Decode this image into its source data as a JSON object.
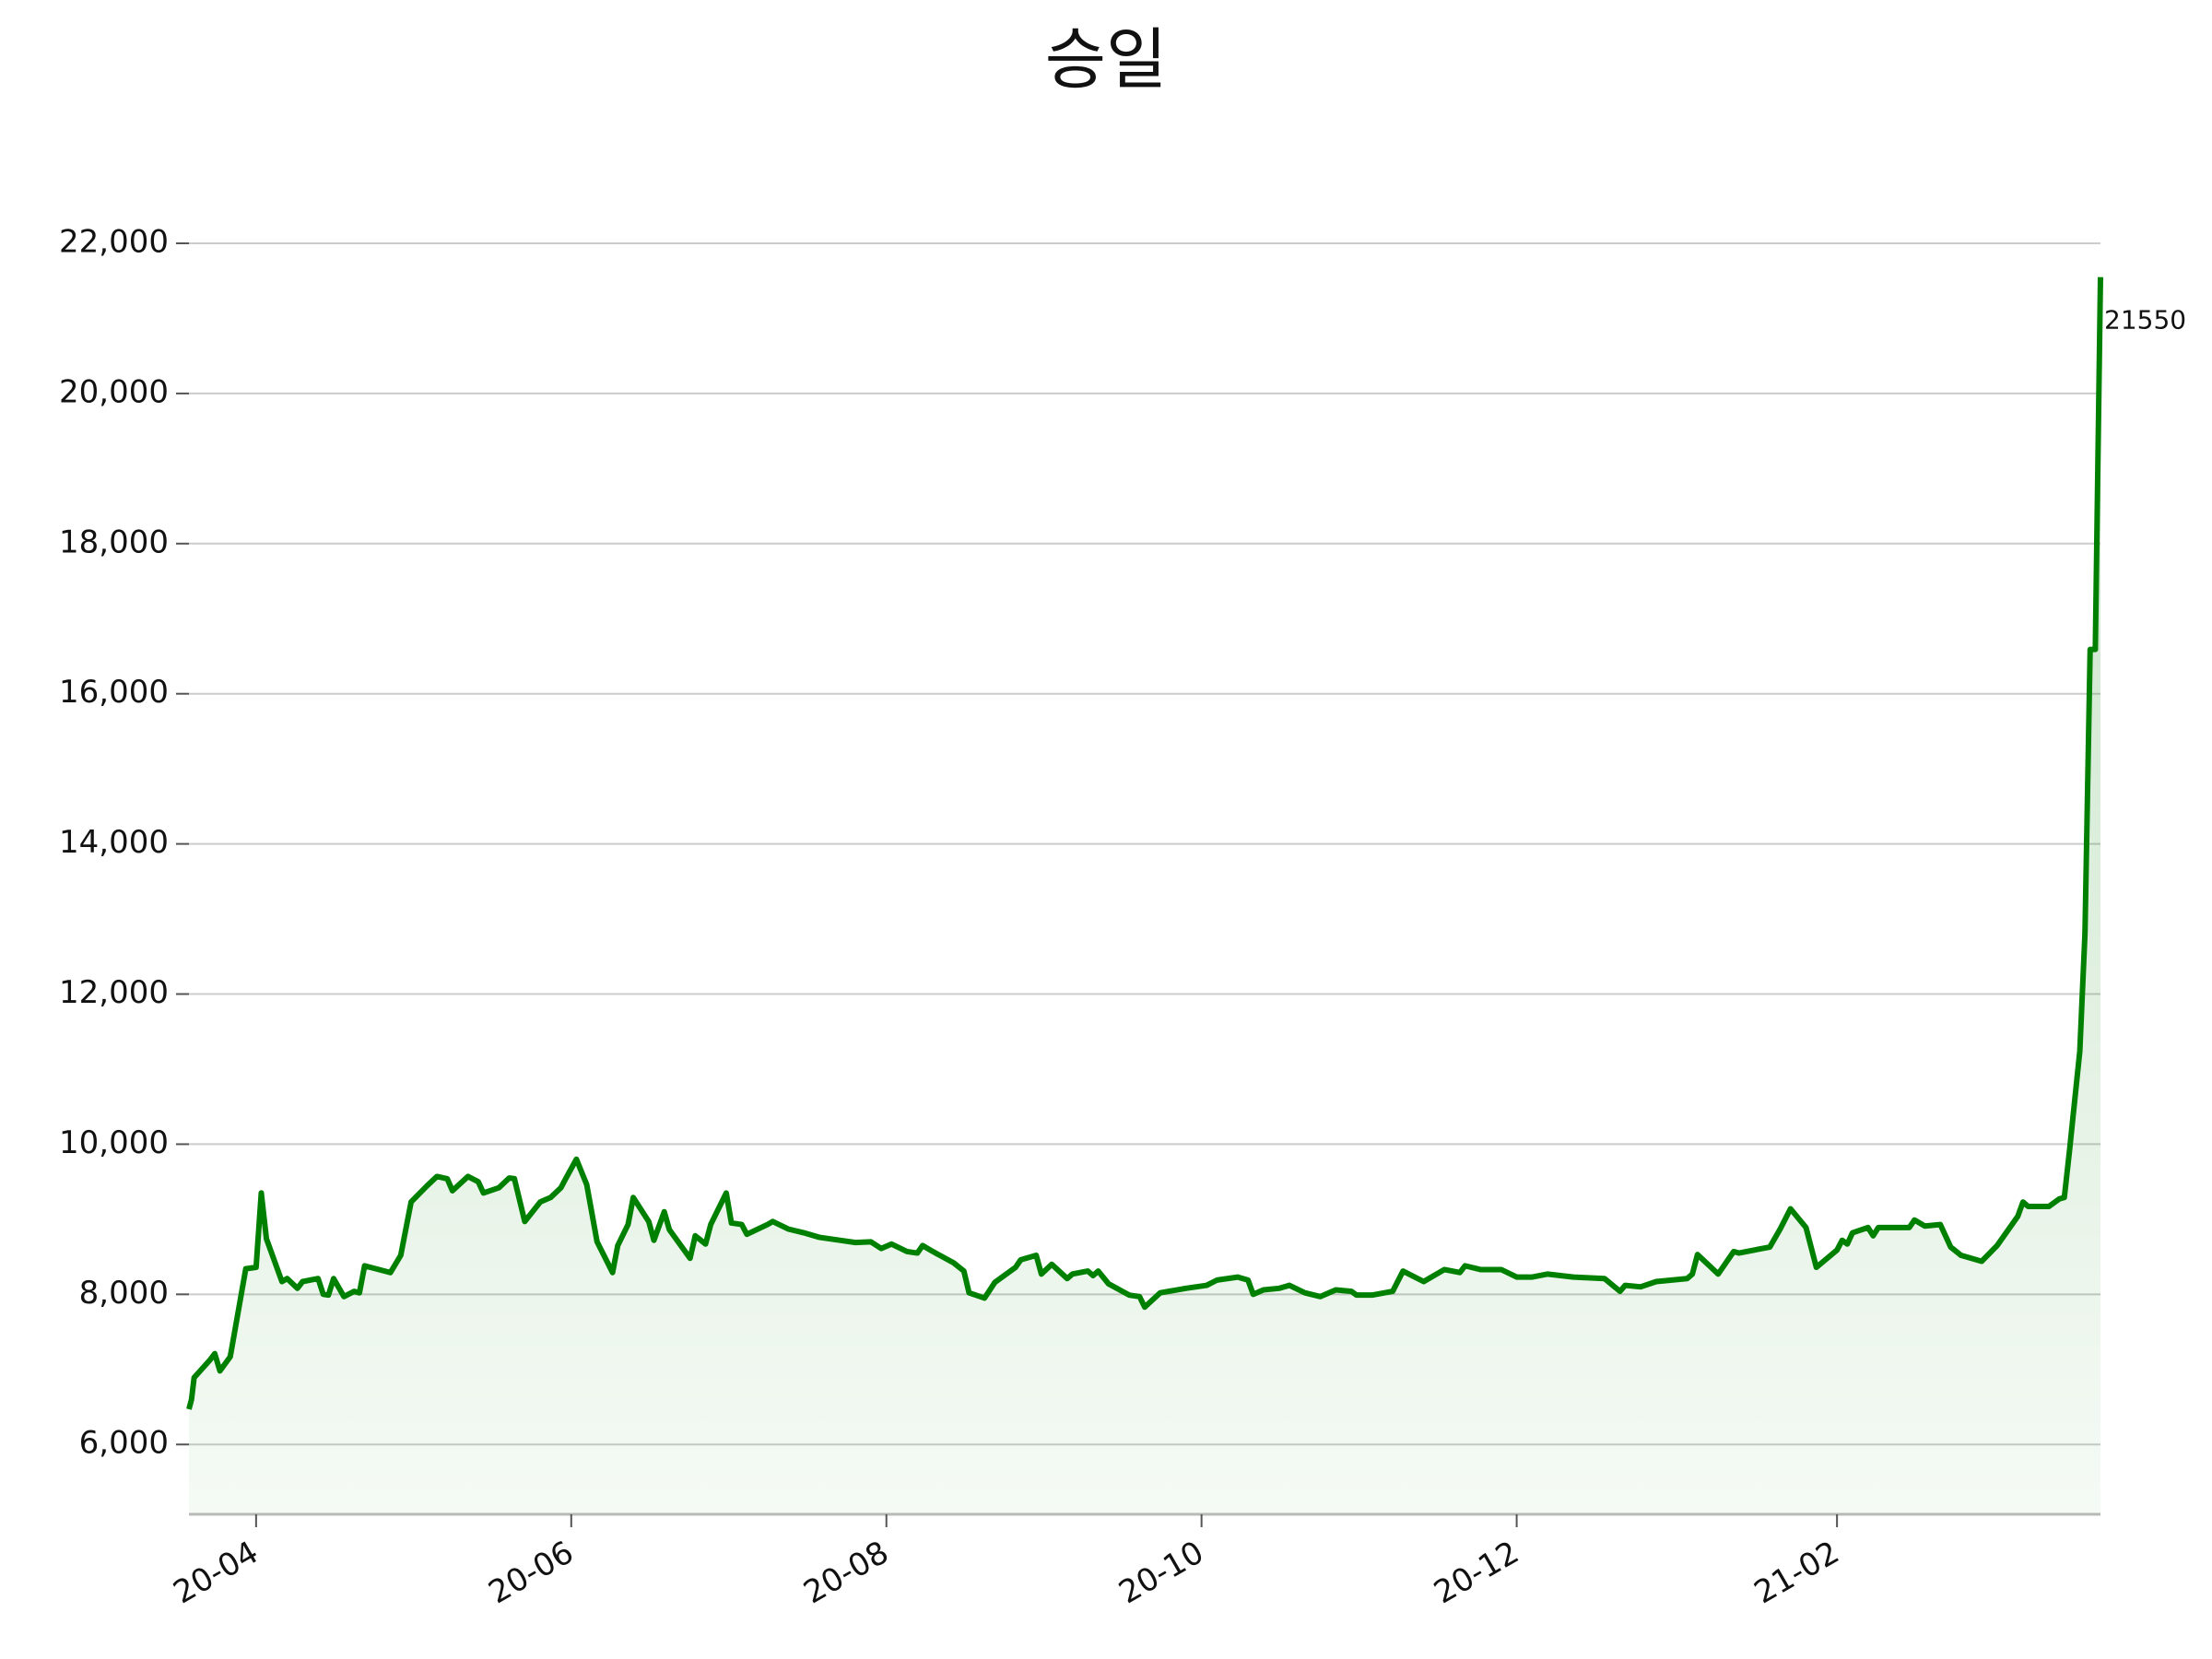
{
  "chart_data": {
    "type": "line",
    "title": "승일",
    "x": [
      -13,
      -12.5,
      -12,
      -9,
      -8,
      -7,
      -5,
      -2,
      0,
      1,
      2,
      5,
      6,
      8,
      9,
      12,
      13,
      14,
      15,
      17,
      19,
      20,
      21,
      26,
      28,
      30,
      33,
      35,
      37,
      38,
      41,
      43,
      44,
      47,
      49,
      50,
      52,
      55,
      57,
      59,
      60,
      62,
      64,
      66,
      69,
      70,
      72,
      73,
      76,
      77,
      79,
      80,
      84,
      85,
      87,
      88,
      91,
      92,
      94,
      95,
      99,
      100,
      103,
      106,
      109,
      113,
      116,
      119,
      121,
      123,
      126,
      128,
      129,
      131,
      135,
      137,
      138,
      141,
      143,
      147,
      148,
      151,
      152,
      154,
      157,
      158,
      161,
      162,
      163,
      165,
      169,
      171,
      172,
      175,
      180,
      184,
      186,
      190,
      192,
      193,
      195,
      198,
      200,
      203,
      206,
      209,
      212,
      213,
      216,
      220,
      222,
      226,
      230,
      233,
      234,
      237,
      241,
      244,
      247,
      250,
      255,
      261,
      264,
      265,
      268,
      271,
      277,
      278,
      279,
      283,
      286,
      287,
      293,
      295,
      297,
      300,
      302,
      306,
      307,
      308,
      309,
      312,
      313,
      314,
      320,
      321,
      323,
      326,
      328,
      330,
      334,
      337,
      341,
      342,
      343,
      347,
      349,
      350,
      351,
      353,
      354,
      355,
      356,
      357
    ],
    "series": [
      {
        "color": "#008000",
        "values": [
          6470,
          6600,
          6890,
          7120,
          7210,
          6980,
          7170,
          8340,
          8360,
          9350,
          8740,
          8170,
          8210,
          8080,
          8170,
          8210,
          8000,
          7990,
          8210,
          7970,
          8040,
          8020,
          8380,
          8290,
          8520,
          9230,
          9440,
          9570,
          9540,
          9380,
          9570,
          9500,
          9350,
          9420,
          9550,
          9540,
          8970,
          9230,
          9290,
          9420,
          9550,
          9800,
          9460,
          8700,
          8290,
          8650,
          8930,
          9290,
          8970,
          8720,
          9100,
          8860,
          8480,
          8780,
          8670,
          8930,
          9350,
          8950,
          8930,
          8800,
          8930,
          8970,
          8870,
          8820,
          8760,
          8720,
          8690,
          8700,
          8610,
          8670,
          8570,
          8550,
          8650,
          8570,
          8420,
          8310,
          8020,
          7950,
          8160,
          8360,
          8460,
          8520,
          8270,
          8400,
          8210,
          8270,
          8310,
          8250,
          8310,
          8140,
          7990,
          7970,
          7830,
          8020,
          8080,
          8120,
          8190,
          8230,
          8190,
          8000,
          8060,
          8080,
          8120,
          8020,
          7970,
          8060,
          8040,
          7990,
          7990,
          8040,
          8310,
          8170,
          8330,
          8290,
          8380,
          8330,
          8330,
          8230,
          8230,
          8270,
          8230,
          8210,
          8040,
          8120,
          8100,
          8170,
          8210,
          8270,
          8530,
          8270,
          8570,
          8550,
          8630,
          8870,
          9140,
          8890,
          8360,
          8590,
          8720,
          8670,
          8820,
          8890,
          8780,
          8890,
          8890,
          8990,
          8910,
          8930,
          8630,
          8520,
          8440,
          8650,
          9040,
          9230,
          9170,
          9170,
          9270,
          9290,
          9910,
          11240,
          12810,
          16590,
          16590,
          21550
        ]
      }
    ],
    "xlim": [
      -13,
      357
    ],
    "xticks": [
      {
        "value": 0,
        "label": "20-04"
      },
      {
        "value": 61,
        "label": "20-06"
      },
      {
        "value": 122,
        "label": "20-08"
      },
      {
        "value": 183,
        "label": "20-10"
      },
      {
        "value": 244,
        "label": "20-12"
      },
      {
        "value": 306,
        "label": "21-02"
      }
    ],
    "ylim": [
      5070,
      22000
    ],
    "yticks": [
      {
        "value": 6000,
        "label": "6,000"
      },
      {
        "value": 8000,
        "label": "8,000"
      },
      {
        "value": 10000,
        "label": "10,000"
      },
      {
        "value": 12000,
        "label": "12,000"
      },
      {
        "value": 14000,
        "label": "14,000"
      },
      {
        "value": 16000,
        "label": "16,000"
      },
      {
        "value": 18000,
        "label": "18,000"
      },
      {
        "value": 20000,
        "label": "20,000"
      },
      {
        "value": 22000,
        "label": "22,000"
      }
    ],
    "grid": true
  }
}
